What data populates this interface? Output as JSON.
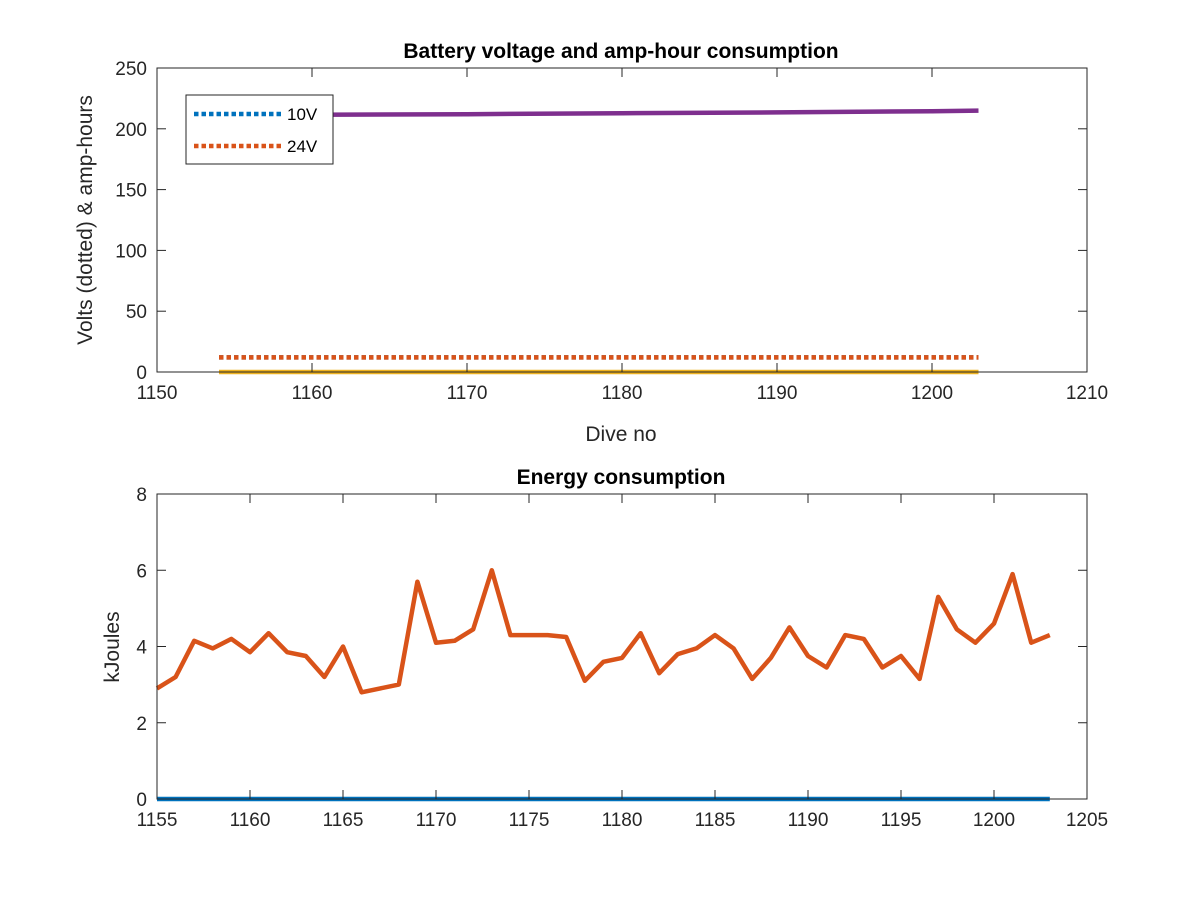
{
  "chart_data": [
    {
      "type": "line",
      "title": "Battery voltage and amp-hour consumption",
      "xlabel": "Dive no",
      "ylabel": "Volts (dotted) & amp-hours",
      "xlim": [
        1150,
        1210
      ],
      "ylim": [
        0,
        250
      ],
      "xticks": [
        1150,
        1160,
        1170,
        1180,
        1190,
        1200,
        1210
      ],
      "yticks": [
        0,
        50,
        100,
        150,
        200,
        250
      ],
      "grid": false,
      "legend_position": "top-left",
      "series": [
        {
          "name": "10V",
          "style": "dotted",
          "color": "#0072BD",
          "x": [
            1154,
            1203
          ],
          "y": [
            12,
            12
          ]
        },
        {
          "name": "24V",
          "style": "dotted",
          "color": "#D95319",
          "x": [
            1154,
            1203
          ],
          "y": [
            12,
            12
          ]
        },
        {
          "style": "solid",
          "color": "#EDB120",
          "x": [
            1154,
            1203
          ],
          "y": [
            0,
            0
          ]
        },
        {
          "style": "solid",
          "color": "#7E2F8E",
          "x": [
            1154,
            1160,
            1170,
            1180,
            1190,
            1200,
            1203
          ],
          "y": [
            211,
            211.5,
            212,
            212.8,
            213.5,
            214.5,
            215
          ]
        }
      ]
    },
    {
      "type": "line",
      "title": "Energy consumption",
      "xlabel": "",
      "ylabel": "kJoules",
      "xlim": [
        1155,
        1205
      ],
      "ylim": [
        0,
        8
      ],
      "xticks": [
        1155,
        1160,
        1165,
        1170,
        1175,
        1180,
        1185,
        1190,
        1195,
        1200,
        1205
      ],
      "yticks": [
        0,
        2,
        4,
        6,
        8
      ],
      "grid": false,
      "series": [
        {
          "style": "solid",
          "color": "#0072BD",
          "x": [
            1155,
            1203
          ],
          "y": [
            0,
            0
          ]
        },
        {
          "style": "solid",
          "color": "#D95319",
          "x": [
            1155,
            1156,
            1157,
            1158,
            1159,
            1160,
            1161,
            1162,
            1163,
            1164,
            1165,
            1166,
            1167,
            1168,
            1169,
            1170,
            1171,
            1172,
            1173,
            1174,
            1175,
            1176,
            1177,
            1178,
            1179,
            1180,
            1181,
            1182,
            1183,
            1184,
            1185,
            1186,
            1187,
            1188,
            1189,
            1190,
            1191,
            1192,
            1193,
            1194,
            1195,
            1196,
            1197,
            1198,
            1199,
            1200,
            1201,
            1202,
            1203
          ],
          "y": [
            2.9,
            3.2,
            4.15,
            3.95,
            4.2,
            3.85,
            4.35,
            3.85,
            3.75,
            3.2,
            4.0,
            2.8,
            2.9,
            3.0,
            5.7,
            4.1,
            4.15,
            4.45,
            6.0,
            4.3,
            4.3,
            4.3,
            4.25,
            3.1,
            3.6,
            3.7,
            4.35,
            3.3,
            3.8,
            3.95,
            4.3,
            3.95,
            3.15,
            3.7,
            4.5,
            3.75,
            3.45,
            4.3,
            4.2,
            3.45,
            3.75,
            3.15,
            5.3,
            4.45,
            4.1,
            4.6,
            5.9,
            4.1,
            4.3
          ]
        }
      ]
    }
  ]
}
